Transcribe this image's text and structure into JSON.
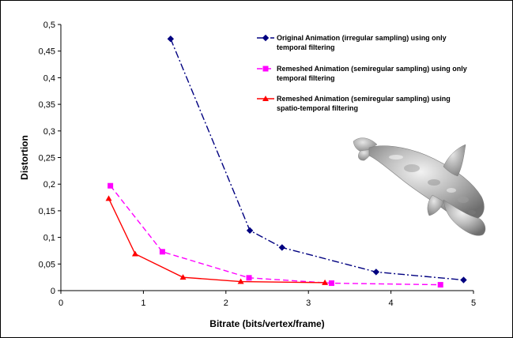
{
  "chart_data": {
    "type": "line",
    "title": "",
    "xlabel": "Bitrate (bits/vertex/frame)",
    "ylabel": "Distortion",
    "xlim": [
      0,
      5
    ],
    "ylim": [
      0,
      0.5
    ],
    "x_ticks": [
      0,
      1,
      2,
      3,
      4,
      5
    ],
    "x_tick_labels": [
      "0",
      "1",
      "2",
      "3",
      "4",
      "5"
    ],
    "y_ticks": [
      0,
      0.05,
      0.1,
      0.15,
      0.2,
      0.25,
      0.3,
      0.35,
      0.4,
      0.45,
      0.5
    ],
    "y_tick_labels": [
      "0",
      "0,05",
      "0,1",
      "0,15",
      "0,2",
      "0,25",
      "0,3",
      "0,35",
      "0,4",
      "0,45",
      "0,5"
    ],
    "grid": false,
    "legend_position": "top-right",
    "series": [
      {
        "name_lines": [
          "Original Animation (irregular sampling) using only",
          "temporal filtering"
        ],
        "color": "#000080",
        "line_style": "dash-dot",
        "marker": "diamond",
        "x": [
          1.33,
          2.29,
          2.68,
          3.82,
          4.88
        ],
        "y": [
          0.473,
          0.113,
          0.081,
          0.035,
          0.02
        ]
      },
      {
        "name_lines": [
          "Remeshed Animation (semiregular sampling) using only",
          "temporal filtering"
        ],
        "color": "#ff00ff",
        "line_style": "dashed",
        "marker": "square",
        "x": [
          0.6,
          1.23,
          2.28,
          3.28,
          4.6
        ],
        "y": [
          0.197,
          0.073,
          0.024,
          0.014,
          0.011
        ]
      },
      {
        "name_lines": [
          "Remeshed Animation (semiregular sampling) using",
          "spatio-temporal filtering"
        ],
        "color": "#ff0000",
        "line_style": "solid",
        "marker": "triangle",
        "x": [
          0.58,
          0.9,
          1.48,
          2.18,
          3.2
        ],
        "y": [
          0.173,
          0.069,
          0.025,
          0.017,
          0.015
        ]
      }
    ],
    "inset_image": "dolphin-mesh-render"
  }
}
